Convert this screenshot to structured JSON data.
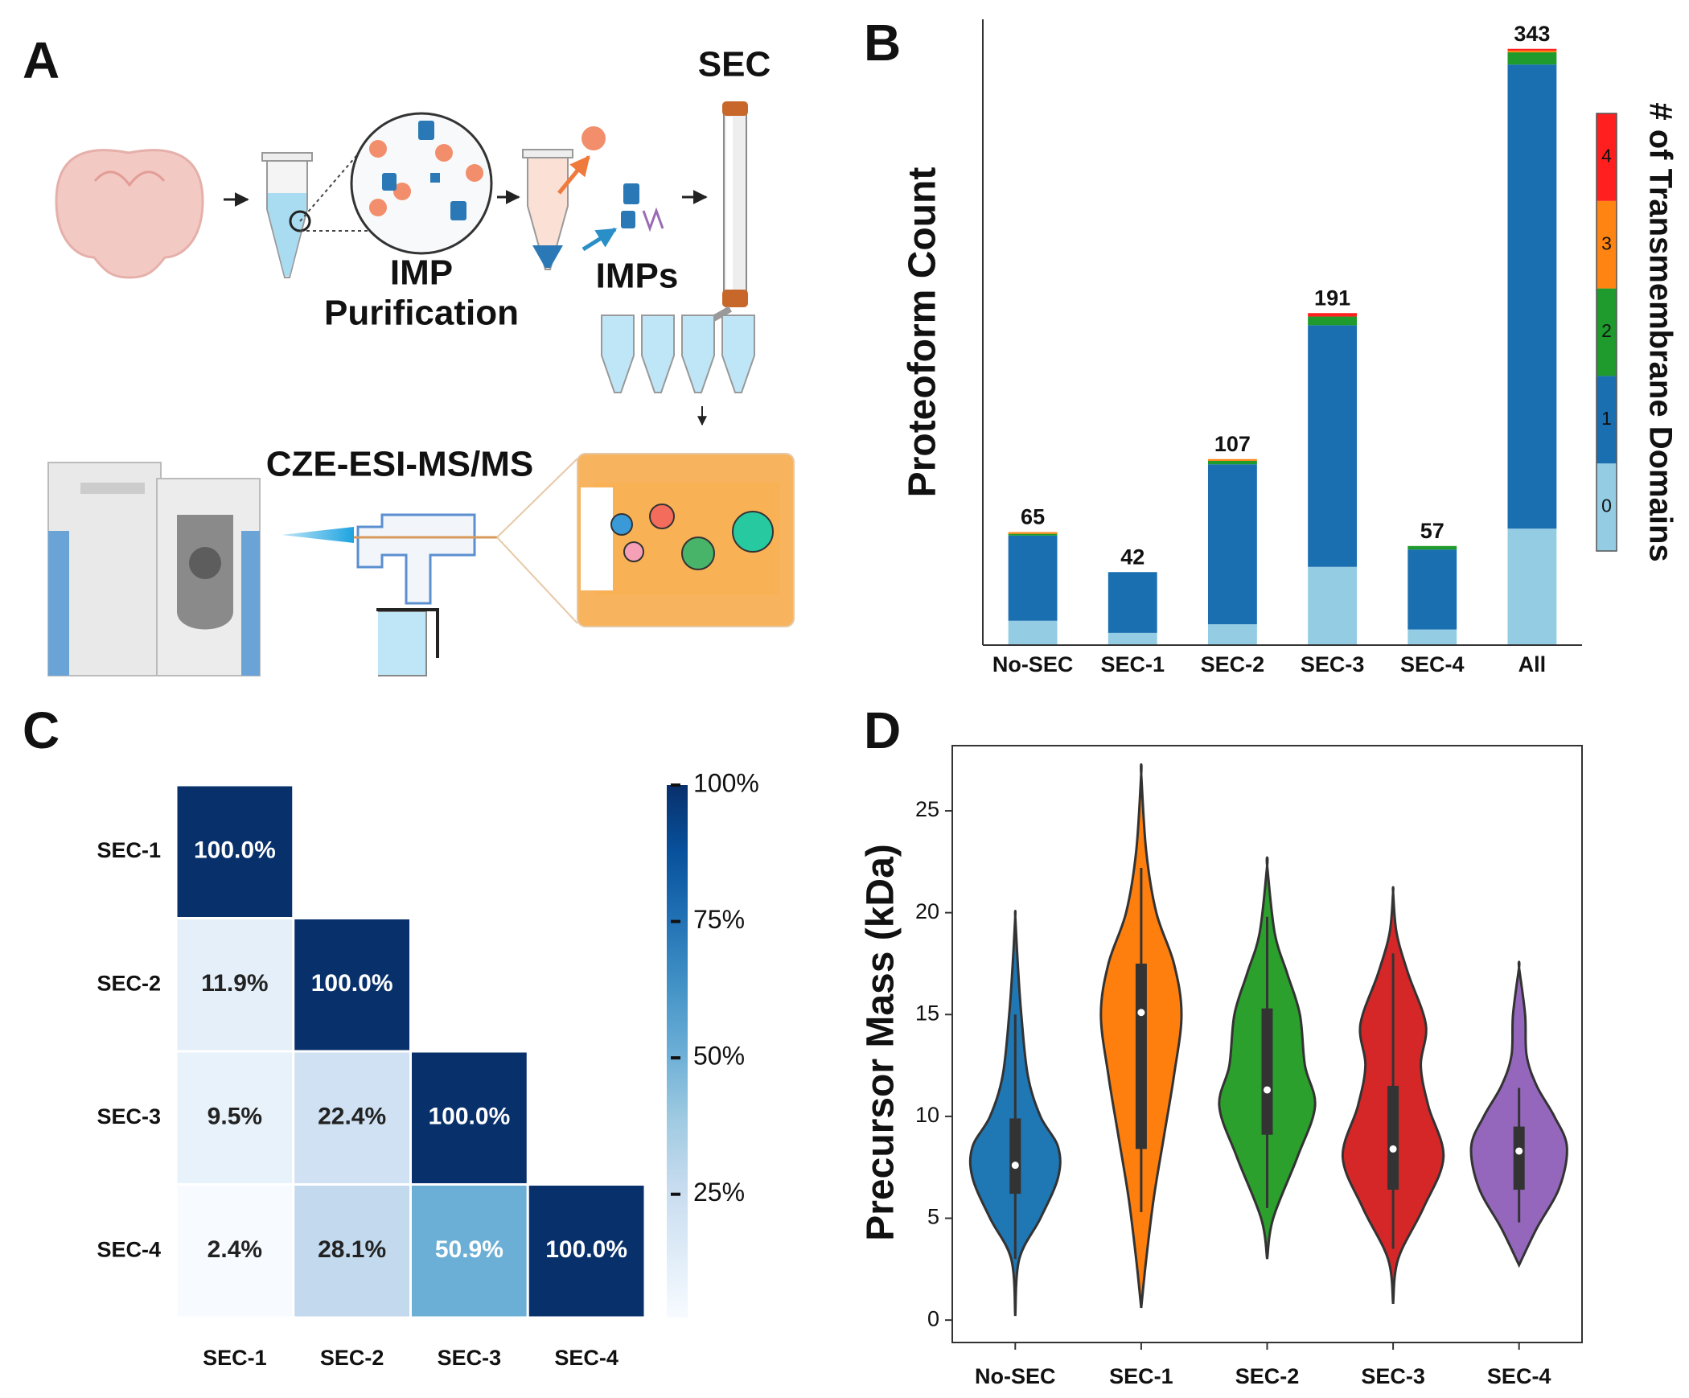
{
  "diagram": {
    "panel_label": "A",
    "labels": {
      "sec": "SEC",
      "imp_purification": [
        "IMP",
        "Purification"
      ],
      "imps": "IMPs",
      "cze": "CZE-ESI-MS/MS"
    }
  },
  "chart_data": [
    {
      "panel_label": "B",
      "type": "stacked_bar",
      "y_label": "Proteoform Count",
      "categories": [
        "No-SEC",
        "SEC-1",
        "SEC-2",
        "SEC-3",
        "SEC-4",
        "All"
      ],
      "totals": [
        65,
        42,
        107,
        191,
        57,
        343
      ],
      "ylim": [
        0,
        360
      ],
      "legend_title": "# of Transmembrane Domains",
      "series": [
        {
          "name": "0",
          "color": "#93cce3",
          "values": [
            14,
            7,
            12,
            45,
            9,
            67
          ]
        },
        {
          "name": "1",
          "color": "#1a6fb1",
          "values": [
            49,
            35,
            92,
            139,
            46,
            267
          ]
        },
        {
          "name": "2",
          "color": "#1f9a2c",
          "values": [
            1,
            0,
            2,
            5,
            2,
            7
          ]
        },
        {
          "name": "3",
          "color": "#ff8411",
          "values": [
            1,
            0,
            1,
            0,
            0,
            1
          ]
        },
        {
          "name": "4",
          "color": "#ff1f1f",
          "values": [
            0,
            0,
            0,
            2,
            0,
            1
          ]
        }
      ]
    },
    {
      "panel_label": "C",
      "type": "heatmap",
      "rows": [
        "SEC-1",
        "SEC-2",
        "SEC-3",
        "SEC-4"
      ],
      "columns": [
        "SEC-1",
        "SEC-2",
        "SEC-3",
        "SEC-4"
      ],
      "values": [
        [
          100.0,
          null,
          null,
          null
        ],
        [
          11.9,
          100.0,
          null,
          null
        ],
        [
          9.5,
          22.4,
          100.0,
          null
        ],
        [
          2.4,
          28.1,
          50.9,
          100.0
        ]
      ],
      "value_labels": [
        [
          "100.0%",
          null,
          null,
          null
        ],
        [
          "11.9%",
          "100.0%",
          null,
          null
        ],
        [
          "9.5%",
          "22.4%",
          "100.0%",
          null
        ],
        [
          "2.4%",
          "28.1%",
          "50.9%",
          "100.0%"
        ]
      ],
      "clim": [
        2.4,
        100
      ],
      "colorbar_ticks": [
        {
          "value": 25,
          "label": "25%"
        },
        {
          "value": 50,
          "label": "50%"
        },
        {
          "value": 75,
          "label": "75%"
        },
        {
          "value": 100,
          "label": "100%"
        }
      ]
    },
    {
      "panel_label": "D",
      "type": "violin",
      "y_label": "Precursor Mass (kDa)",
      "categories": [
        "No-SEC",
        "SEC-1",
        "SEC-2",
        "SEC-3",
        "SEC-4"
      ],
      "ylim": [
        -1.1,
        28.2
      ],
      "yticks": [
        0,
        5,
        10,
        15,
        20,
        25
      ],
      "violins": [
        {
          "color": "#1f77b4",
          "kde_y": [
            0.2,
            3,
            5,
            7,
            8.5,
            10,
            12,
            15,
            17.5,
            19.8
          ],
          "kde_width": [
            0,
            0.08,
            0.5,
            0.85,
            0.85,
            0.5,
            0.25,
            0.12,
            0.05,
            0
          ],
          "whisker_low": 3,
          "q1": 6.2,
          "median": 7.6,
          "q3": 9.9,
          "whisker_high": 15
        },
        {
          "color": "#ff7f0e",
          "kde_y": [
            0.6,
            3,
            6,
            9,
            12,
            15,
            17.5,
            20,
            23,
            26.8
          ],
          "kde_width": [
            0,
            0.1,
            0.25,
            0.45,
            0.65,
            0.8,
            0.65,
            0.3,
            0.1,
            0
          ],
          "whisker_low": 5.3,
          "q1": 8.4,
          "median": 15.1,
          "q3": 17.5,
          "whisker_high": 22.2
        },
        {
          "color": "#2ca02c",
          "kde_y": [
            3,
            5,
            8,
            10.5,
            12.5,
            15,
            17,
            19,
            22.3
          ],
          "kde_width": [
            0,
            0.12,
            0.6,
            0.95,
            0.75,
            0.65,
            0.4,
            0.15,
            0
          ],
          "whisker_low": 5.5,
          "q1": 9.1,
          "median": 11.3,
          "q3": 15.3,
          "whisker_high": 19.8
        },
        {
          "color": "#d62728",
          "kde_y": [
            0.8,
            3,
            5.5,
            8,
            10.5,
            12.5,
            14.5,
            17,
            19,
            21
          ],
          "kde_width": [
            0,
            0.1,
            0.6,
            1.0,
            0.7,
            0.55,
            0.65,
            0.3,
            0.07,
            0
          ],
          "whisker_low": 3.5,
          "q1": 6.4,
          "median": 8.4,
          "q3": 11.5,
          "whisker_high": 18
        },
        {
          "color": "#9467bd",
          "kde_y": [
            2.7,
            4.5,
            6.5,
            8.5,
            10,
            11.5,
            13,
            15,
            17.3
          ],
          "kde_width": [
            0,
            0.35,
            0.8,
            0.95,
            0.7,
            0.35,
            0.15,
            0.12,
            0
          ],
          "whisker_low": 4.8,
          "q1": 6.4,
          "median": 8.3,
          "q3": 9.5,
          "whisker_high": 11.4
        }
      ]
    }
  ]
}
